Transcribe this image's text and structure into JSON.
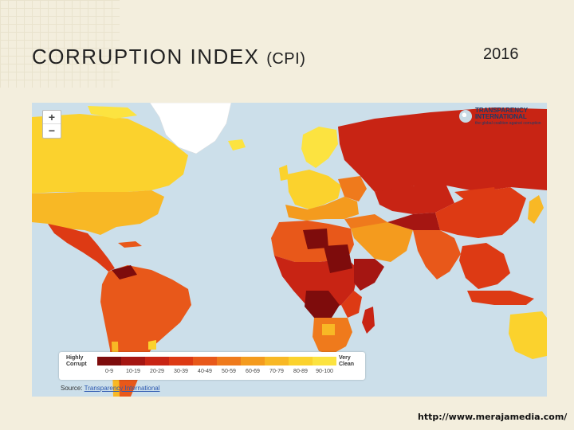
{
  "slide": {
    "title_main": "CORRUPTION INDEX",
    "title_sub": "(CPI)",
    "year": "2016",
    "url": "http://www.merajamedia.com/"
  },
  "map": {
    "zoom_in": "+",
    "zoom_out": "−",
    "logo_line1": "TRANSPARENCY",
    "logo_line2": "INTERNATIONAL",
    "logo_tagline": "the global coalition against corruption",
    "legend_left_1": "Highly",
    "legend_left_2": "Corrupt",
    "legend_right_1": "Very",
    "legend_right_2": "Clean",
    "legend_ranges": [
      "0-9",
      "10-19",
      "20-29",
      "30-39",
      "40-49",
      "50-59",
      "60-69",
      "70-79",
      "80-89",
      "90-100"
    ],
    "legend_colors": [
      "#7e0c0c",
      "#a51612",
      "#c82414",
      "#dd3a14",
      "#e8581a",
      "#ef7a1c",
      "#f49b1e",
      "#f8b825",
      "#fbd22d",
      "#fce340"
    ],
    "source_label": "Source:",
    "source_link": "Transparency International",
    "colors": {
      "ocean": "#ccdfea",
      "greenland": "#ffffff",
      "clean": "#fce340",
      "mid": "#f49b1e",
      "low": "#dd3a14",
      "very_low": "#a51612"
    }
  }
}
